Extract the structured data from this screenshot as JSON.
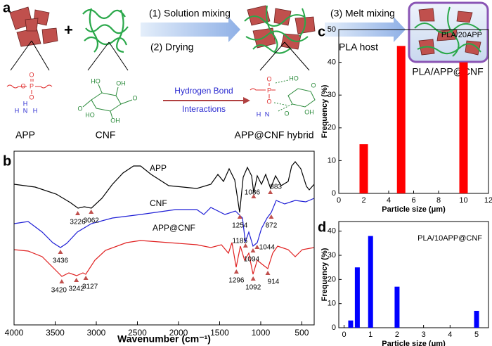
{
  "scheme": {
    "label": "a",
    "steps": [
      "(1) Solution mixing",
      "(2) Drying",
      "(3) Melt mixing",
      "PLA host"
    ],
    "components": [
      "APP",
      "CNF",
      "APP@CNF hybrid",
      "PLA/APP@CNF"
    ],
    "interaction": [
      "Hydrogen Bond",
      "Interactions"
    ],
    "app_atoms": [
      "O",
      "P",
      "O",
      "O",
      "N",
      "H",
      "H",
      "H"
    ],
    "cnf_atoms": [
      "HO",
      "OH",
      "O",
      "O",
      "HO",
      "OH"
    ],
    "hybrid_atoms": [
      "O",
      "P",
      "O",
      "N",
      "H",
      "HO",
      "O",
      "OH",
      "O"
    ]
  },
  "chart_data": [
    {
      "type": "spectrum",
      "label": "b",
      "xlabel": "Wavenumber (cm⁻¹)",
      "xlim": [
        4000,
        350
      ],
      "xticks": [
        4000,
        3500,
        3000,
        2500,
        2000,
        1500,
        1000,
        500
      ],
      "series": [
        {
          "name": "APP",
          "color": "#000000",
          "peaks": [
            3226,
            3062,
            1254,
            1086,
            883
          ]
        },
        {
          "name": "CNF",
          "color": "#1f1fd6",
          "peaks": [
            3436,
            1185,
            1094,
            1044,
            872
          ]
        },
        {
          "name": "APP@CNF",
          "color": "#e02020",
          "peaks": [
            3420,
            3242,
            3127,
            1296,
            1092,
            914
          ]
        }
      ]
    },
    {
      "type": "bar",
      "label": "c",
      "annotation": "PLA/20APP",
      "xlabel": "Particle size (μm)",
      "ylabel": "Frequency (%)",
      "x": [
        2,
        5,
        10
      ],
      "values": [
        15,
        45,
        40
      ],
      "color": "#ff0000",
      "xlim": [
        0,
        12
      ],
      "xticks": [
        0,
        2,
        4,
        6,
        8,
        10,
        12
      ],
      "ylim": [
        0,
        50
      ],
      "yticks": [
        0,
        10,
        20,
        30,
        40,
        50
      ]
    },
    {
      "type": "bar",
      "label": "d",
      "annotation": "PLA/10APP@CNF",
      "xlabel": "Particle size (μm)",
      "ylabel": "Frequency (%)",
      "x": [
        0.25,
        0.5,
        1,
        2,
        5
      ],
      "values": [
        3,
        25,
        38,
        17,
        7
      ],
      "color": "#0000ff",
      "xlim": [
        -0.2,
        5.45
      ],
      "xticks": [
        0,
        1,
        2,
        3,
        4,
        5
      ],
      "ylim": [
        0,
        44
      ],
      "yticks": [
        0,
        10,
        20,
        30,
        40
      ]
    }
  ]
}
